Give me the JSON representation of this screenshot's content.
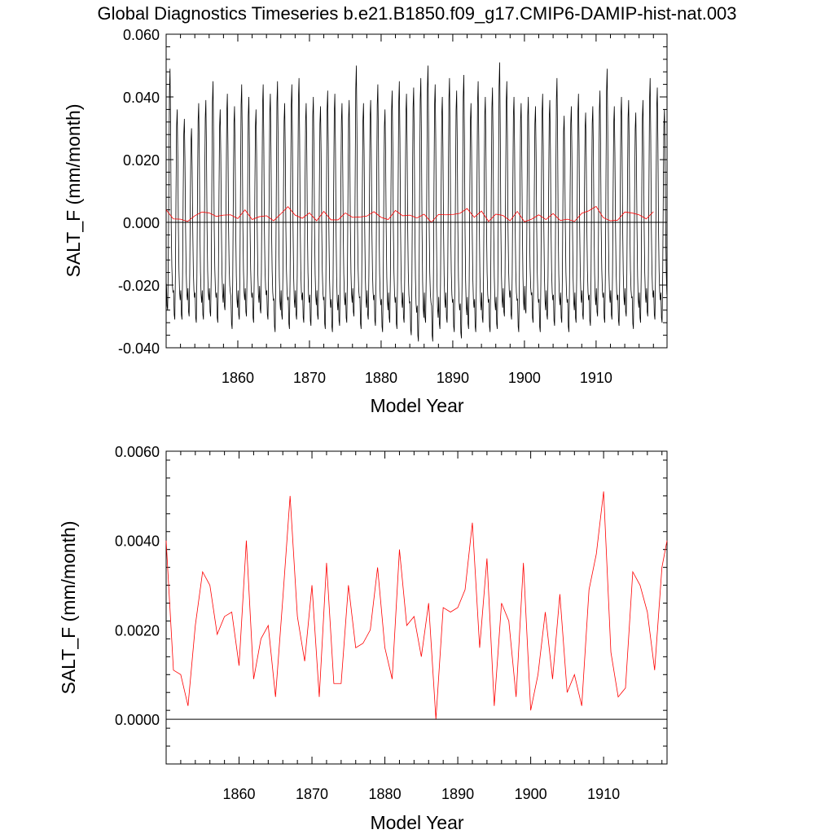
{
  "figure": {
    "title": "Global Diagnostics Timeseries b.e21.B1850.f09_g17.CMIP6-DAMIP-hist-nat.003"
  },
  "colors": {
    "monthly_line": "#000000",
    "annual_line": "#ff0000",
    "zero_line": "#000000"
  },
  "chart_data": [
    {
      "type": "line",
      "xlabel": "Model Year",
      "ylabel": "SALT_F (mm/month)",
      "xlim": [
        1850,
        1919.9
      ],
      "ylim": [
        -0.04,
        0.06
      ],
      "x_ticks": [
        1860,
        1870,
        1880,
        1890,
        1900,
        1910
      ],
      "x_tick_labels": [
        "1860",
        "1870",
        "1880",
        "1890",
        "1900",
        "1910"
      ],
      "y_ticks": [
        -0.04,
        -0.02,
        0,
        0.02,
        0.04,
        0.06
      ],
      "y_tick_labels": [
        "-0.040",
        "-0.020",
        "0.000",
        "0.020",
        "0.040",
        "0.060"
      ],
      "reference_line_y": 0,
      "series": [
        {
          "style": "monthly",
          "color": "#000000",
          "start_year": 1850,
          "points_per_year": 12,
          "annual_max": [
            0.049,
            0.036,
            0.033,
            0.03,
            0.038,
            0.039,
            0.045,
            0.036,
            0.041,
            0.037,
            0.044,
            0.04,
            0.036,
            0.044,
            0.041,
            0.045,
            0.038,
            0.044,
            0.046,
            0.038,
            0.04,
            0.037,
            0.042,
            0.041,
            0.038,
            0.039,
            0.05,
            0.038,
            0.039,
            0.044,
            0.036,
            0.042,
            0.045,
            0.041,
            0.043,
            0.046,
            0.05,
            0.044,
            0.04,
            0.046,
            0.042,
            0.047,
            0.038,
            0.045,
            0.04,
            0.043,
            0.051,
            0.045,
            0.04,
            0.038,
            0.04,
            0.037,
            0.041,
            0.039,
            0.046,
            0.034,
            0.037,
            0.041,
            0.035,
            0.037,
            0.042,
            0.049,
            0.037,
            0.04,
            0.039,
            0.035,
            0.039,
            0.046,
            0.043,
            0.036
          ],
          "annual_min": [
            -0.028,
            -0.031,
            -0.031,
            -0.03,
            -0.032,
            -0.031,
            -0.03,
            -0.032,
            -0.028,
            -0.034,
            -0.031,
            -0.03,
            -0.032,
            -0.029,
            -0.031,
            -0.035,
            -0.031,
            -0.034,
            -0.031,
            -0.032,
            -0.033,
            -0.031,
            -0.034,
            -0.035,
            -0.033,
            -0.032,
            -0.03,
            -0.034,
            -0.031,
            -0.033,
            -0.035,
            -0.032,
            -0.034,
            -0.032,
            -0.036,
            -0.038,
            -0.032,
            -0.038,
            -0.034,
            -0.032,
            -0.035,
            -0.037,
            -0.034,
            -0.035,
            -0.032,
            -0.035,
            -0.034,
            -0.03,
            -0.031,
            -0.035,
            -0.029,
            -0.032,
            -0.035,
            -0.031,
            -0.033,
            -0.032,
            -0.035,
            -0.032,
            -0.031,
            -0.033,
            -0.03,
            -0.032,
            -0.031,
            -0.033,
            -0.03,
            -0.034,
            -0.032,
            -0.03,
            -0.031,
            -0.032
          ]
        },
        {
          "style": "annual",
          "color": "#ff0000",
          "x": [
            1850.0,
            1851.0,
            1852.0,
            1853.0,
            1854.0,
            1855.0,
            1856.0,
            1857.0,
            1858.0,
            1859.0,
            1860.0,
            1861.0,
            1862.0,
            1863.0,
            1864.0,
            1865.0,
            1866.0,
            1867.0,
            1868.0,
            1869.0,
            1870.0,
            1871.0,
            1872.0,
            1873.0,
            1874.0,
            1875.0,
            1876.0,
            1877.0,
            1878.0,
            1879.0,
            1880.0,
            1881.0,
            1882.0,
            1883.0,
            1884.0,
            1885.0,
            1886.0,
            1887.0,
            1888.0,
            1889.0,
            1890.0,
            1891.0,
            1892.0,
            1893.0,
            1894.0,
            1895.0,
            1896.0,
            1897.0,
            1898.0,
            1899.0,
            1900.0,
            1901.0,
            1902.0,
            1903.0,
            1904.0,
            1905.0,
            1906.0,
            1907.0,
            1908.0,
            1909.0,
            1910.0,
            1911.0,
            1912.0,
            1913.0,
            1914.0,
            1915.0,
            1916.0,
            1917.0,
            1918.0
          ],
          "y": [
            0.004,
            0.0011,
            0.001,
            0.0003,
            0.0021,
            0.0033,
            0.003,
            0.0019,
            0.0023,
            0.0024,
            0.0012,
            0.004,
            0.0009,
            0.0018,
            0.0021,
            0.0005,
            0.0027,
            0.005,
            0.0023,
            0.0013,
            0.003,
            0.0005,
            0.0035,
            0.0008,
            0.0008,
            0.003,
            0.0016,
            0.0017,
            0.002,
            0.0034,
            0.0016,
            0.0009,
            0.0038,
            0.0021,
            0.0023,
            0.0014,
            0.0026,
            0.0,
            0.0025,
            0.0024,
            0.0025,
            0.0029,
            0.0044,
            0.0016,
            0.0036,
            0.0003,
            0.0026,
            0.0022,
            0.0005,
            0.0035,
            0.0002,
            0.001,
            0.0024,
            0.0009,
            0.0028,
            0.0006,
            0.001,
            0.0003,
            0.0029,
            0.0037,
            0.0051,
            0.0015,
            0.0005,
            0.0007,
            0.0033,
            0.003,
            0.0024,
            0.0011,
            0.0034
          ]
        }
      ]
    },
    {
      "type": "line",
      "xlabel": "Model Year",
      "ylabel": "SALT_F (mm/month)",
      "xlim": [
        1850,
        1918.7
      ],
      "ylim": [
        -0.001,
        0.006
      ],
      "x_ticks": [
        1860,
        1870,
        1880,
        1890,
        1900,
        1910
      ],
      "x_tick_labels": [
        "1860",
        "1870",
        "1880",
        "1890",
        "1900",
        "1910"
      ],
      "y_ticks": [
        0,
        0.002,
        0.004,
        0.006
      ],
      "y_tick_labels": [
        "0.0000",
        "0.0020",
        "0.0040",
        "0.0060"
      ],
      "reference_line_y": 0,
      "series": [
        {
          "style": "annual",
          "color": "#ff0000",
          "x": [
            1850.0,
            1851.0,
            1852.0,
            1853.0,
            1854.0,
            1855.0,
            1856.0,
            1857.0,
            1858.0,
            1859.0,
            1860.0,
            1861.0,
            1862.0,
            1863.0,
            1864.0,
            1865.0,
            1866.0,
            1867.0,
            1868.0,
            1869.0,
            1870.0,
            1871.0,
            1872.0,
            1873.0,
            1874.0,
            1875.0,
            1876.0,
            1877.0,
            1878.0,
            1879.0,
            1880.0,
            1881.0,
            1882.0,
            1883.0,
            1884.0,
            1885.0,
            1886.0,
            1887.0,
            1888.0,
            1889.0,
            1890.0,
            1891.0,
            1892.0,
            1893.0,
            1894.0,
            1895.0,
            1896.0,
            1897.0,
            1898.0,
            1899.0,
            1900.0,
            1901.0,
            1902.0,
            1903.0,
            1904.0,
            1905.0,
            1906.0,
            1907.0,
            1908.0,
            1909.0,
            1910.0,
            1911.0,
            1912.0,
            1913.0,
            1914.0,
            1915.0,
            1916.0,
            1917.0,
            1918.0,
            1918.7
          ],
          "y": [
            0.004,
            0.0011,
            0.001,
            0.0003,
            0.0021,
            0.0033,
            0.003,
            0.0019,
            0.0023,
            0.0024,
            0.0012,
            0.004,
            0.0009,
            0.0018,
            0.0021,
            0.0005,
            0.0027,
            0.005,
            0.0023,
            0.0013,
            0.003,
            0.0005,
            0.0035,
            0.0008,
            0.0008,
            0.003,
            0.0016,
            0.0017,
            0.002,
            0.0034,
            0.0016,
            0.0009,
            0.0038,
            0.0021,
            0.0023,
            0.0014,
            0.0026,
            0.0,
            0.0025,
            0.0024,
            0.0025,
            0.0029,
            0.0044,
            0.0016,
            0.0036,
            0.0003,
            0.0026,
            0.0022,
            0.0005,
            0.0035,
            0.0002,
            0.001,
            0.0024,
            0.0009,
            0.0028,
            0.0006,
            0.001,
            0.0003,
            0.0029,
            0.0037,
            0.0051,
            0.0015,
            0.0005,
            0.0007,
            0.0033,
            0.003,
            0.0024,
            0.0011,
            0.0034,
            0.004
          ]
        }
      ]
    }
  ]
}
